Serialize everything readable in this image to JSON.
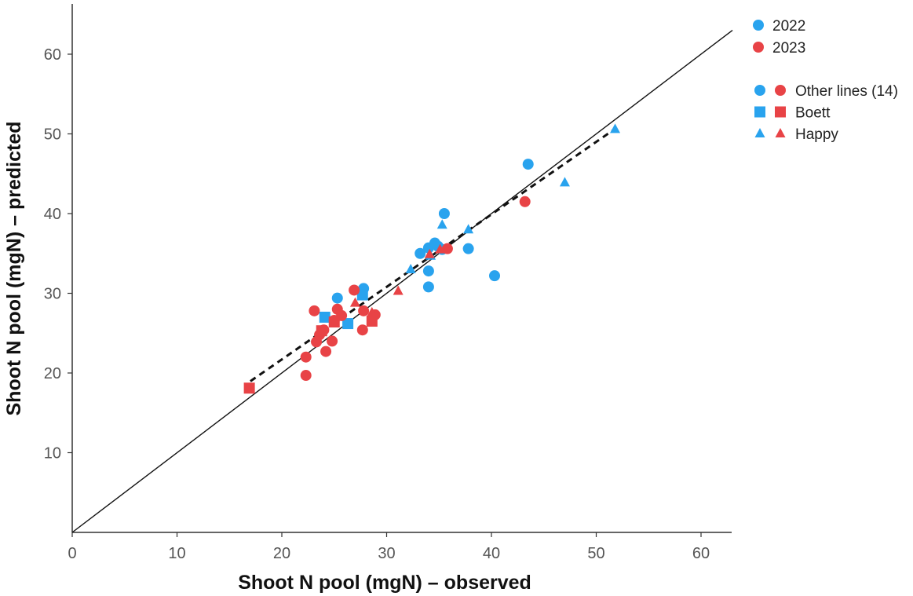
{
  "chart_data": {
    "type": "scatter",
    "title": "",
    "xlabel": "Shoot N pool (mgN) – observed",
    "ylabel": "Shoot N pool (mgN) – predicted",
    "xlim": [
      0,
      63
    ],
    "ylim": [
      0,
      66
    ],
    "x_ticks": [
      0,
      10,
      20,
      30,
      40,
      50,
      60
    ],
    "y_ticks": [
      10,
      20,
      30,
      40,
      50,
      60
    ],
    "grid": false,
    "legend_position": "top-right",
    "years": [
      {
        "name": "2022",
        "color": "#29a3ee"
      },
      {
        "name": "2023",
        "color": "#e84346"
      }
    ],
    "markers": [
      {
        "name": "Other lines (14)",
        "shape": "circle"
      },
      {
        "name": "Boett",
        "shape": "square"
      },
      {
        "name": "Happy",
        "shape": "triangle"
      }
    ],
    "lines": [
      {
        "name": "1:1",
        "style": "solid",
        "slope": 1.0,
        "intercept": 0
      },
      {
        "name": "regression",
        "style": "dashed",
        "slope": 0.91,
        "intercept": 3.5,
        "x_range": [
          17,
          51.8
        ]
      }
    ],
    "series": [
      {
        "year": "2022",
        "marker": "circle",
        "points": [
          [
            43.5,
            46.2
          ],
          [
            35.5,
            40.0
          ],
          [
            37.8,
            35.6
          ],
          [
            40.3,
            32.2
          ],
          [
            34.0,
            30.8
          ],
          [
            34.0,
            32.8
          ],
          [
            33.2,
            35.0
          ],
          [
            34.0,
            35.7
          ],
          [
            34.6,
            36.3
          ],
          [
            34.9,
            35.9
          ],
          [
            35.3,
            35.5
          ],
          [
            27.8,
            30.6
          ],
          [
            25.3,
            29.4
          ]
        ]
      },
      {
        "year": "2022",
        "marker": "square",
        "points": [
          [
            24.1,
            27.0
          ],
          [
            26.3,
            26.2
          ],
          [
            27.7,
            29.8
          ]
        ]
      },
      {
        "year": "2022",
        "marker": "triangle",
        "points": [
          [
            51.8,
            50.6
          ],
          [
            47.0,
            43.9
          ],
          [
            37.8,
            38.0
          ],
          [
            35.3,
            38.6
          ],
          [
            32.3,
            33.0
          ],
          [
            34.2,
            34.7
          ]
        ]
      },
      {
        "year": "2023",
        "marker": "circle",
        "points": [
          [
            43.2,
            41.5
          ],
          [
            35.8,
            35.6
          ],
          [
            26.9,
            30.4
          ],
          [
            23.1,
            27.8
          ],
          [
            25.3,
            28.0
          ],
          [
            25.7,
            27.2
          ],
          [
            25.0,
            26.6
          ],
          [
            27.8,
            27.8
          ],
          [
            28.9,
            27.3
          ],
          [
            27.7,
            25.4
          ],
          [
            22.3,
            22.0
          ],
          [
            22.3,
            19.7
          ],
          [
            24.2,
            22.7
          ],
          [
            24.8,
            24.0
          ],
          [
            23.3,
            23.9
          ],
          [
            24.0,
            25.4
          ],
          [
            23.6,
            24.8
          ]
        ]
      },
      {
        "year": "2023",
        "marker": "square",
        "points": [
          [
            16.9,
            18.1
          ],
          [
            23.8,
            25.3
          ],
          [
            28.6,
            26.5
          ],
          [
            25.0,
            26.4
          ]
        ]
      },
      {
        "year": "2023",
        "marker": "triangle",
        "points": [
          [
            31.1,
            30.3
          ],
          [
            27.0,
            28.8
          ],
          [
            34.1,
            34.9
          ],
          [
            35.1,
            35.5
          ],
          [
            28.6,
            27.6
          ]
        ]
      }
    ]
  }
}
